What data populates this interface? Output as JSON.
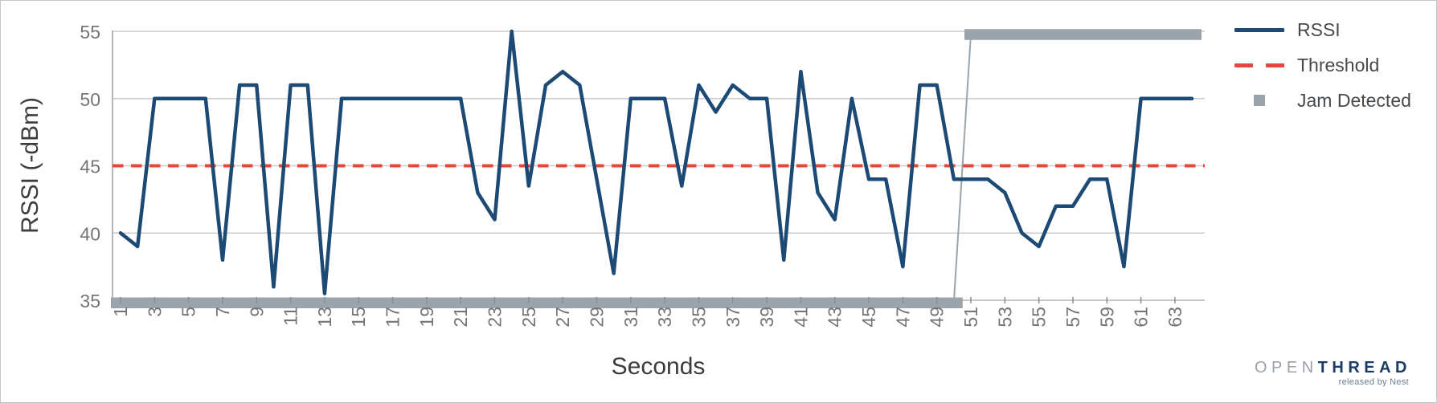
{
  "chart_data": {
    "type": "line",
    "title": "",
    "xlabel": "Seconds",
    "ylabel": "RSSI (-dBm)",
    "xlim": [
      1,
      64
    ],
    "ylim": [
      35,
      55
    ],
    "grid": true,
    "legend_position": "right",
    "x_ticks": [
      1,
      3,
      5,
      7,
      9,
      11,
      13,
      15,
      17,
      19,
      21,
      23,
      25,
      27,
      29,
      31,
      33,
      35,
      37,
      39,
      41,
      43,
      45,
      47,
      49,
      51,
      53,
      55,
      57,
      59,
      61,
      63
    ],
    "y_ticks": [
      55,
      50,
      45,
      40,
      35
    ],
    "x": [
      1,
      2,
      3,
      4,
      5,
      6,
      7,
      8,
      9,
      10,
      11,
      12,
      13,
      14,
      15,
      16,
      17,
      18,
      19,
      20,
      21,
      22,
      23,
      24,
      25,
      26,
      27,
      28,
      29,
      30,
      31,
      32,
      33,
      34,
      35,
      36,
      37,
      38,
      39,
      40,
      41,
      42,
      43,
      44,
      45,
      46,
      47,
      48,
      49,
      50,
      51,
      52,
      53,
      54,
      55,
      56,
      57,
      58,
      59,
      60,
      61,
      62,
      63,
      64
    ],
    "series": [
      {
        "name": "RSSI",
        "style": "solid-line",
        "color": "#1d4a74",
        "values": [
          40,
          39,
          50,
          50,
          50,
          50,
          38,
          51,
          51,
          36,
          51,
          51,
          35.5,
          50,
          50,
          50,
          50,
          50,
          50,
          50,
          50,
          43,
          41,
          55,
          43.5,
          51,
          52,
          51,
          44,
          37,
          50,
          50,
          50,
          43.5,
          51,
          49,
          51,
          50,
          50,
          38,
          52,
          43,
          41,
          50,
          44,
          44,
          37.5,
          51,
          51,
          44,
          44,
          44,
          43,
          40,
          39,
          42,
          42,
          44,
          44,
          37.5,
          50,
          50,
          50,
          50
        ]
      },
      {
        "name": "Threshold",
        "style": "dashed-line",
        "color": "#e2493c",
        "value": 45
      },
      {
        "name": "Jam Detected",
        "style": "thick-marker-line",
        "color": "#9ba4ab",
        "values": [
          35,
          35,
          35,
          35,
          35,
          35,
          35,
          35,
          35,
          35,
          35,
          35,
          35,
          35,
          35,
          35,
          35,
          35,
          35,
          35,
          35,
          35,
          35,
          35,
          35,
          35,
          35,
          35,
          35,
          35,
          35,
          35,
          35,
          35,
          35,
          35,
          35,
          35,
          35,
          35,
          35,
          35,
          35,
          35,
          35,
          35,
          35,
          35,
          35,
          35,
          55,
          55,
          55,
          55,
          55,
          55,
          55,
          55,
          55,
          55,
          55,
          55,
          55,
          55
        ]
      }
    ]
  },
  "axis": {
    "x_title": "Seconds",
    "y_title": "RSSI (-dBm)"
  },
  "legend": {
    "items": [
      {
        "label": "RSSI",
        "swatch": "line",
        "color": "#1d4a74"
      },
      {
        "label": "Threshold",
        "swatch": "dashes",
        "color": "#e2493c"
      },
      {
        "label": "Jam Detected",
        "swatch": "square",
        "color": "#9ba4ab"
      }
    ]
  },
  "branding": {
    "logo_part1": "OPEN",
    "logo_part2": "THREAD",
    "tagline": "released by Nest"
  },
  "colors": {
    "rssi": "#1d4a74",
    "threshold": "#e2493c",
    "jam": "#9ba4ab",
    "gridline": "#cbcbcb",
    "tick_text": "#757575",
    "axis_title_text": "#3c3c3c"
  }
}
